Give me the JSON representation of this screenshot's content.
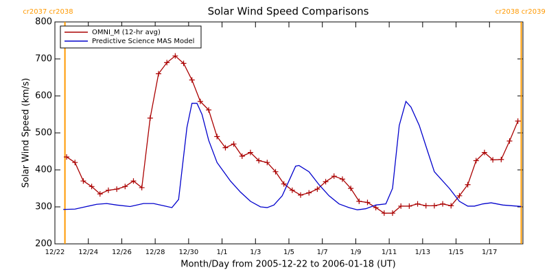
{
  "chart_data": {
    "type": "line",
    "title": "Solar Wind Speed Comparisons",
    "xlabel": "Month/Day from 2005-12-22 to 2006-01-18 (UT)",
    "ylabel": "Solar Wind Speed (km/s)",
    "xlim": [
      0,
      28
    ],
    "xticks": [
      {
        "value": 0,
        "label": "12/22"
      },
      {
        "value": 2,
        "label": "12/24"
      },
      {
        "value": 4,
        "label": "12/26"
      },
      {
        "value": 6,
        "label": "12/28"
      },
      {
        "value": 8,
        "label": "12/30"
      },
      {
        "value": 10,
        "label": "1/1"
      },
      {
        "value": 12,
        "label": "1/3"
      },
      {
        "value": 14,
        "label": "1/5"
      },
      {
        "value": 16,
        "label": "1/7"
      },
      {
        "value": 18,
        "label": "1/9"
      },
      {
        "value": 20,
        "label": "1/11"
      },
      {
        "value": 22,
        "label": "1/13"
      },
      {
        "value": 24,
        "label": "1/15"
      },
      {
        "value": 26,
        "label": "1/17"
      }
    ],
    "ylim": [
      200,
      800
    ],
    "yticks": [
      200,
      300,
      400,
      500,
      600,
      700,
      800
    ],
    "legend": "upper left",
    "annotations": [
      {
        "x": 0.6,
        "label": "cr2037 cr2038"
      },
      {
        "x": 27.9,
        "label": "cr2038 cr2039"
      }
    ],
    "annotation_color": "#ff9900",
    "series": [
      {
        "name": "OMNI_M (12-hr avg)",
        "color": "#aa0000",
        "marker": "+",
        "x": [
          0.7,
          1.2,
          1.7,
          2.2,
          2.7,
          3.2,
          3.7,
          4.2,
          4.7,
          5.2,
          5.7,
          6.2,
          6.7,
          7.2,
          7.7,
          8.2,
          8.7,
          9.2,
          9.7,
          10.2,
          10.7,
          11.2,
          11.7,
          12.2,
          12.7,
          13.2,
          13.7,
          14.2,
          14.7,
          15.2,
          15.7,
          16.2,
          16.7,
          17.2,
          17.7,
          18.2,
          18.7,
          19.2,
          19.7,
          20.2,
          20.7,
          21.2,
          21.7,
          22.2,
          22.7,
          23.2,
          23.7,
          24.2,
          24.7,
          25.2,
          25.7,
          26.2,
          26.7,
          27.2,
          27.7
        ],
        "values": [
          435,
          420,
          370,
          355,
          335,
          345,
          348,
          355,
          370,
          352,
          540,
          660,
          690,
          708,
          688,
          643,
          585,
          562,
          490,
          460,
          470,
          437,
          447,
          425,
          420,
          395,
          362,
          345,
          332,
          338,
          348,
          368,
          383,
          375,
          350,
          315,
          312,
          298,
          283,
          283,
          302,
          302,
          308,
          303,
          303,
          308,
          303,
          330,
          360,
          425,
          447,
          427,
          428,
          478,
          532
        ]
      },
      {
        "name": "Predictive Science MAS Model",
        "color": "#0000cc",
        "x": [
          0.5,
          1.2,
          1.8,
          2.5,
          3.1,
          3.7,
          4.5,
          5.3,
          5.9,
          6.6,
          7.0,
          7.4,
          7.9,
          8.2,
          8.5,
          8.8,
          9.2,
          9.7,
          10.5,
          11.1,
          11.7,
          12.3,
          12.7,
          13.1,
          13.6,
          14.1,
          14.4,
          14.6,
          15.2,
          15.8,
          16.4,
          17.0,
          17.6,
          18.1,
          18.6,
          19.2,
          19.8,
          20.2,
          20.6,
          21.0,
          21.3,
          21.8,
          22.3,
          22.7,
          23.6,
          24.2,
          24.7,
          25.1,
          25.6,
          26.1,
          26.8,
          27.9
        ],
        "values": [
          293,
          294,
          300,
          307,
          309,
          305,
          301,
          309,
          309,
          302,
          298,
          320,
          515,
          580,
          580,
          550,
          480,
          420,
          370,
          340,
          315,
          300,
          298,
          305,
          330,
          380,
          410,
          412,
          395,
          360,
          330,
          308,
          298,
          292,
          295,
          305,
          308,
          350,
          520,
          585,
          570,
          520,
          450,
          395,
          350,
          315,
          302,
          302,
          308,
          311,
          305,
          301
        ]
      }
    ]
  }
}
